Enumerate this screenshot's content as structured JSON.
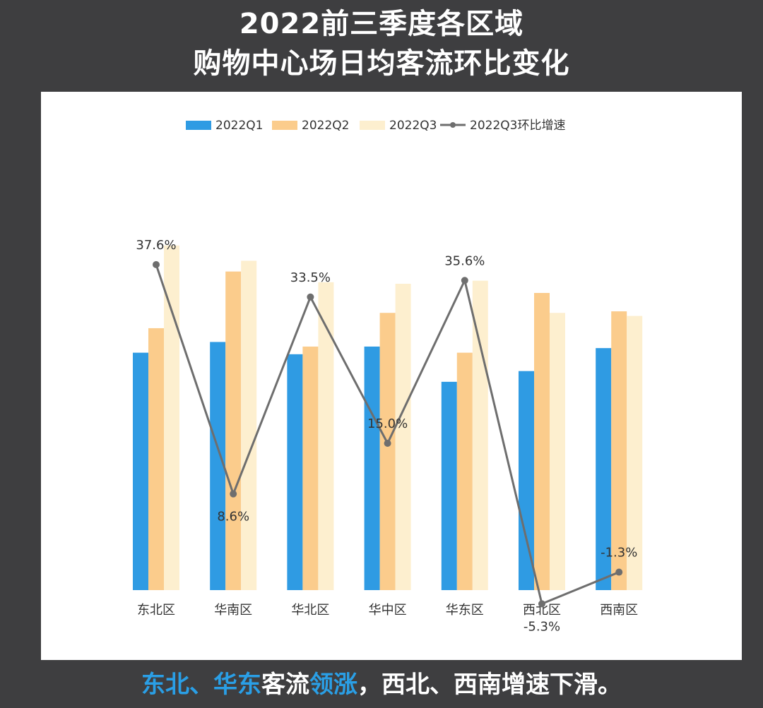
{
  "title": {
    "line1": "2022前三季度各区域",
    "line2": "购物中心场日均客流环比变化"
  },
  "caption": {
    "part1": "东北、华东",
    "part2": "客流",
    "part3": "领涨",
    "part4": "，西北、西南增速下滑。"
  },
  "colors": {
    "q1": "#2f9be3",
    "q2": "#fbcc8c",
    "q3": "#fdefcf",
    "line": "#6e6e6e",
    "highlight": "#2a9fe6"
  },
  "chart_data": {
    "type": "bar",
    "categories": [
      "东北区",
      "华南区",
      "华北区",
      "华中区",
      "华东区",
      "西北区",
      "西南区"
    ],
    "series": [
      {
        "name": "2022Q1",
        "values": [
          15.5,
          16.2,
          15.4,
          15.9,
          13.6,
          14.3,
          15.8
        ]
      },
      {
        "name": "2022Q2",
        "values": [
          17.1,
          20.8,
          15.9,
          18.1,
          15.5,
          19.4,
          18.2
        ]
      },
      {
        "name": "2022Q3",
        "values": [
          22.5,
          21.5,
          20.1,
          20.0,
          20.2,
          18.1,
          17.9
        ]
      }
    ],
    "line_series": {
      "name": "2022Q3环比增速",
      "values": [
        37.6,
        8.6,
        33.5,
        15.0,
        35.6,
        -5.3,
        -1.3
      ],
      "labels": [
        "37.6%",
        "8.6%",
        "33.5%",
        "15.0%",
        "35.6%",
        "-5.3%",
        "-1.3%"
      ]
    },
    "legend": [
      "2022Q1",
      "2022Q2",
      "2022Q3",
      "2022Q3环比增速"
    ],
    "legend_position": "top",
    "grid": false
  }
}
